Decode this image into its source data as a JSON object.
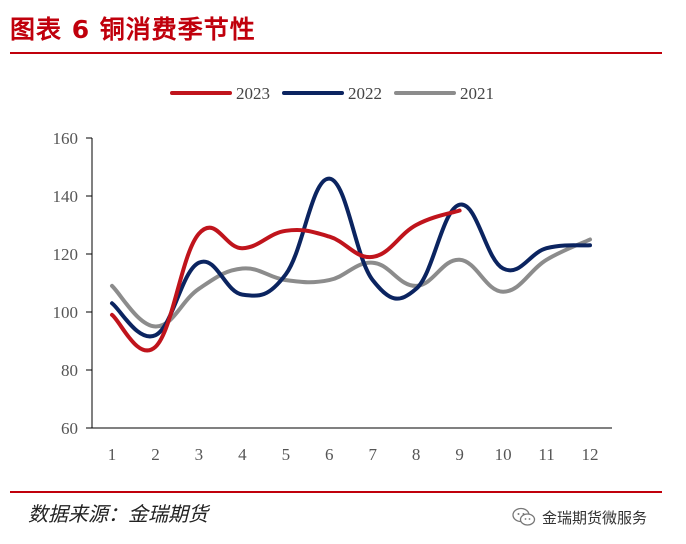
{
  "header": {
    "title": "图表 6  铜消费季节性"
  },
  "footer": {
    "source": "数据来源：金瑞期货",
    "watermark": "金瑞期货微服务",
    "watermark_icon": "wechat-icon"
  },
  "colors": {
    "accent": "#c0000c",
    "grid": "#000000"
  },
  "chart_data": {
    "type": "line",
    "title": "",
    "xlabel": "",
    "ylabel": "",
    "categories": [
      "1",
      "2",
      "3",
      "4",
      "5",
      "6",
      "7",
      "8",
      "9",
      "10",
      "11",
      "12"
    ],
    "ylim": [
      60,
      160
    ],
    "yticks": [
      60,
      80,
      100,
      120,
      140,
      160
    ],
    "grid": false,
    "legend": "top-center",
    "series": [
      {
        "name": "2023",
        "color": "#c0141c",
        "values": [
          99,
          88,
          127,
          122,
          128,
          126,
          119,
          130,
          135,
          null,
          null,
          null
        ]
      },
      {
        "name": "2022",
        "color": "#0b2460",
        "values": [
          103,
          92,
          117,
          106,
          113,
          146,
          111,
          108,
          137,
          115,
          122,
          123
        ]
      },
      {
        "name": "2021",
        "color": "#8c8c8c",
        "values": [
          109,
          95,
          108,
          115,
          111,
          111,
          117,
          109,
          118,
          107,
          118,
          125
        ]
      }
    ]
  }
}
